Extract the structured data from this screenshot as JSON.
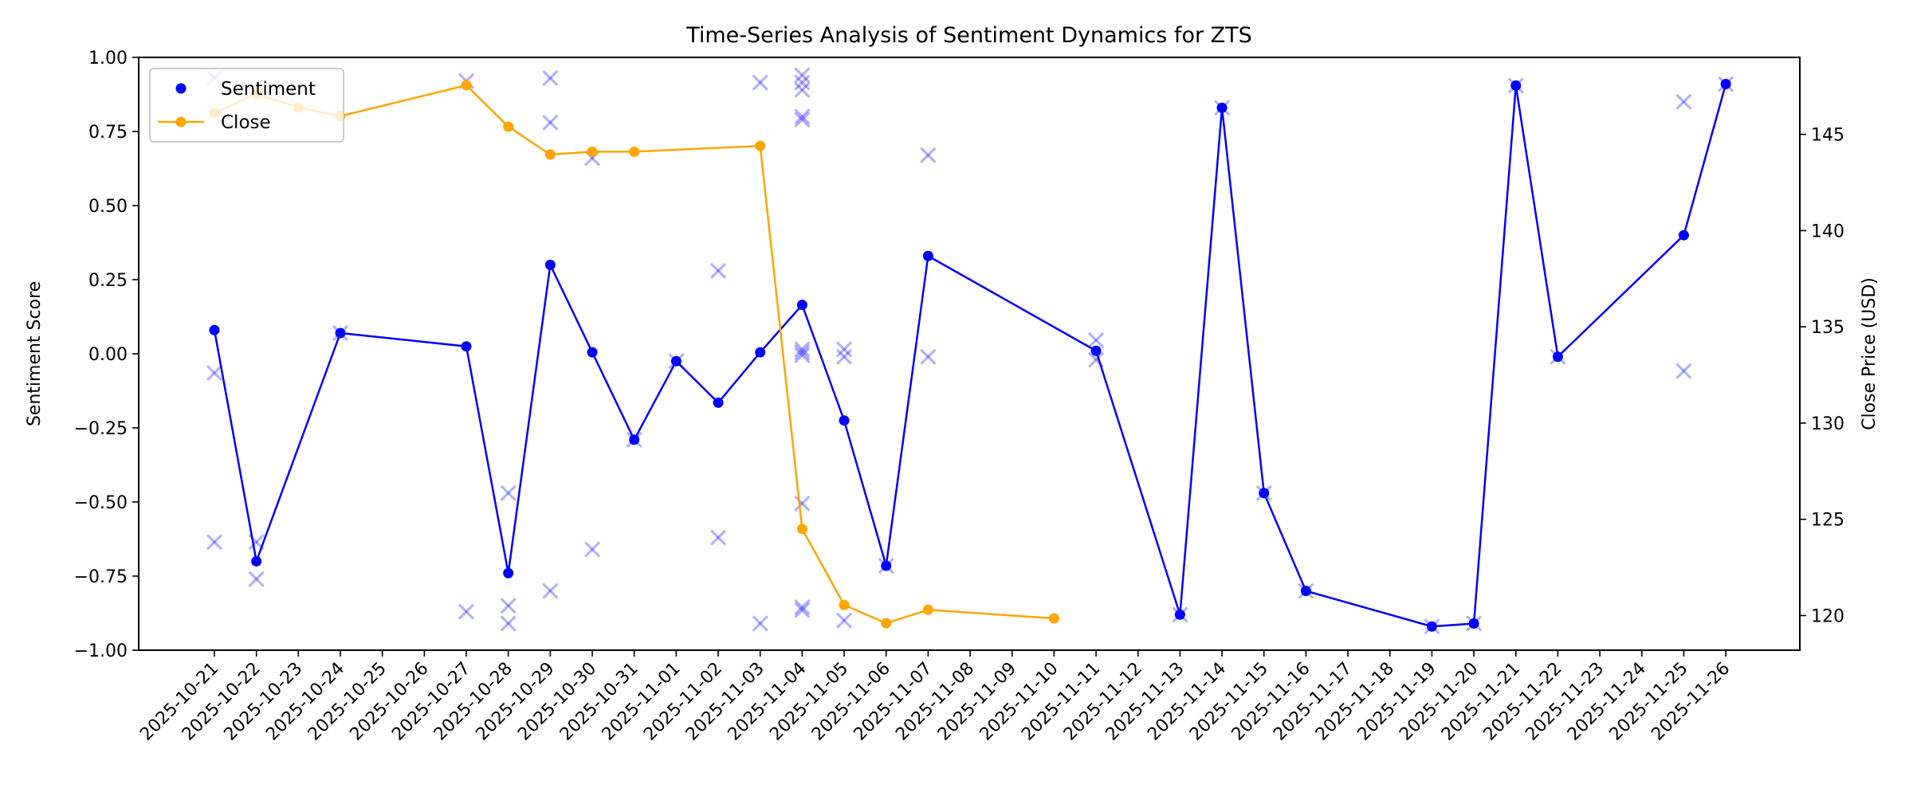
{
  "chart_data": {
    "type": "line",
    "title": "Time-Series Analysis of Sentiment Dynamics for ZTS",
    "xlabel": "",
    "ylabel": "Sentiment Score",
    "y2label": "Close Price (USD)",
    "ylim": [
      -1.0,
      1.0
    ],
    "y2lim": [
      118.2,
      149.0
    ],
    "yticks": [
      "1.00",
      "0.75",
      "0.50",
      "0.25",
      "0.00",
      "−0.25",
      "−0.50",
      "−0.75",
      "−1.00"
    ],
    "ytick_values": [
      1.0,
      0.75,
      0.5,
      0.25,
      0.0,
      -0.25,
      -0.5,
      -0.75,
      -1.0
    ],
    "y2ticks": [
      "120",
      "125",
      "130",
      "135",
      "140",
      "145"
    ],
    "y2tick_values": [
      120,
      125,
      130,
      135,
      140,
      145
    ],
    "grid": false,
    "legend_position": "upper left",
    "legend": [
      {
        "label": "Sentiment",
        "color": "#0000ff",
        "style": "marker"
      },
      {
        "label": "Close",
        "color": "#ffa500",
        "style": "line-marker"
      }
    ],
    "categories": [
      "2025-10-21",
      "2025-10-22",
      "2025-10-23",
      "2025-10-24",
      "2025-10-25",
      "2025-10-26",
      "2025-10-27",
      "2025-10-28",
      "2025-10-29",
      "2025-10-30",
      "2025-10-31",
      "2025-11-01",
      "2025-11-02",
      "2025-11-03",
      "2025-11-04",
      "2025-11-05",
      "2025-11-06",
      "2025-11-07",
      "2025-11-08",
      "2025-11-09",
      "2025-11-10",
      "2025-11-11",
      "2025-11-12",
      "2025-11-13",
      "2025-11-14",
      "2025-11-15",
      "2025-11-16",
      "2025-11-17",
      "2025-11-18",
      "2025-11-19",
      "2025-11-20",
      "2025-11-21",
      "2025-11-22",
      "2025-11-23",
      "2025-11-24",
      "2025-11-25",
      "2025-11-26"
    ],
    "series": [
      {
        "name": "Sentiment",
        "axis": "left",
        "color": "#0000ff",
        "points": [
          [
            "2025-10-21",
            0.08
          ],
          [
            "2025-10-22",
            -0.7
          ],
          [
            "2025-10-24",
            0.07
          ],
          [
            "2025-10-27",
            0.025
          ],
          [
            "2025-10-28",
            -0.74
          ],
          [
            "2025-10-29",
            0.3
          ],
          [
            "2025-10-30",
            0.005
          ],
          [
            "2025-10-31",
            -0.29
          ],
          [
            "2025-11-01",
            -0.025
          ],
          [
            "2025-11-02",
            -0.165
          ],
          [
            "2025-11-03",
            0.005
          ],
          [
            "2025-11-04",
            0.165
          ],
          [
            "2025-11-05",
            -0.225
          ],
          [
            "2025-11-06",
            -0.715
          ],
          [
            "2025-11-07",
            0.33
          ],
          [
            "2025-11-11",
            0.01
          ],
          [
            "2025-11-13",
            -0.88
          ],
          [
            "2025-11-14",
            0.83
          ],
          [
            "2025-11-15",
            -0.47
          ],
          [
            "2025-11-16",
            -0.8
          ],
          [
            "2025-11-19",
            -0.92
          ],
          [
            "2025-11-20",
            -0.91
          ],
          [
            "2025-11-21",
            0.905
          ],
          [
            "2025-11-22",
            -0.01
          ],
          [
            "2025-11-25",
            0.4
          ],
          [
            "2025-11-26",
            0.91
          ]
        ]
      },
      {
        "name": "Close",
        "axis": "right",
        "color": "#ffa500",
        "points": [
          [
            "2025-10-21",
            146.1
          ],
          [
            "2025-10-22",
            147.1
          ],
          [
            "2025-10-23",
            146.4
          ],
          [
            "2025-10-24",
            145.95
          ],
          [
            "2025-10-27",
            147.55
          ],
          [
            "2025-10-28",
            145.4
          ],
          [
            "2025-10-29",
            143.95
          ],
          [
            "2025-10-30",
            144.1
          ],
          [
            "2025-10-31",
            144.1
          ],
          [
            "2025-11-03",
            144.4
          ],
          [
            "2025-11-04",
            124.5
          ],
          [
            "2025-11-05",
            120.55
          ],
          [
            "2025-11-06",
            119.6
          ],
          [
            "2025-11-07",
            120.3
          ],
          [
            "2025-11-10",
            119.85
          ]
        ]
      },
      {
        "name": "Individual sentiment (x markers)",
        "axis": "left",
        "color": "#0000ff",
        "alpha": 0.3,
        "style": "x",
        "points": [
          [
            "2025-10-21",
            0.93
          ],
          [
            "2025-10-21",
            -0.065
          ],
          [
            "2025-10-21",
            -0.635
          ],
          [
            "2025-10-22",
            -0.635
          ],
          [
            "2025-10-22",
            -0.76
          ],
          [
            "2025-10-24",
            0.07
          ],
          [
            "2025-10-27",
            0.92
          ],
          [
            "2025-10-27",
            -0.87
          ],
          [
            "2025-10-28",
            -0.47
          ],
          [
            "2025-10-28",
            -0.85
          ],
          [
            "2025-10-28",
            -0.91
          ],
          [
            "2025-10-29",
            0.93
          ],
          [
            "2025-10-29",
            0.78
          ],
          [
            "2025-10-29",
            -0.8
          ],
          [
            "2025-10-30",
            0.66
          ],
          [
            "2025-10-30",
            -0.66
          ],
          [
            "2025-10-31",
            -0.29
          ],
          [
            "2025-11-01",
            -0.025
          ],
          [
            "2025-11-02",
            0.28
          ],
          [
            "2025-11-02",
            -0.62
          ],
          [
            "2025-11-03",
            0.915
          ],
          [
            "2025-11-03",
            -0.91
          ],
          [
            "2025-11-04",
            0.94
          ],
          [
            "2025-11-04",
            0.915
          ],
          [
            "2025-11-04",
            0.89
          ],
          [
            "2025-11-04",
            0.8
          ],
          [
            "2025-11-04",
            0.79
          ],
          [
            "2025-11-04",
            0.015
          ],
          [
            "2025-11-04",
            0.005
          ],
          [
            "2025-11-04",
            -0.005
          ],
          [
            "2025-11-04",
            -0.505
          ],
          [
            "2025-11-04",
            -0.855
          ],
          [
            "2025-11-04",
            -0.865
          ],
          [
            "2025-11-05",
            0.015
          ],
          [
            "2025-11-05",
            -0.01
          ],
          [
            "2025-11-05",
            -0.9
          ],
          [
            "2025-11-06",
            -0.715
          ],
          [
            "2025-11-07",
            0.67
          ],
          [
            "2025-11-07",
            -0.01
          ],
          [
            "2025-11-11",
            0.046
          ],
          [
            "2025-11-11",
            -0.02
          ],
          [
            "2025-11-13",
            -0.88
          ],
          [
            "2025-11-14",
            0.83
          ],
          [
            "2025-11-15",
            -0.47
          ],
          [
            "2025-11-16",
            -0.8
          ],
          [
            "2025-11-19",
            -0.92
          ],
          [
            "2025-11-20",
            -0.91
          ],
          [
            "2025-11-21",
            0.905
          ],
          [
            "2025-11-22",
            -0.01
          ],
          [
            "2025-11-25",
            0.85
          ],
          [
            "2025-11-25",
            -0.058
          ],
          [
            "2025-11-26",
            0.91
          ]
        ]
      }
    ]
  }
}
